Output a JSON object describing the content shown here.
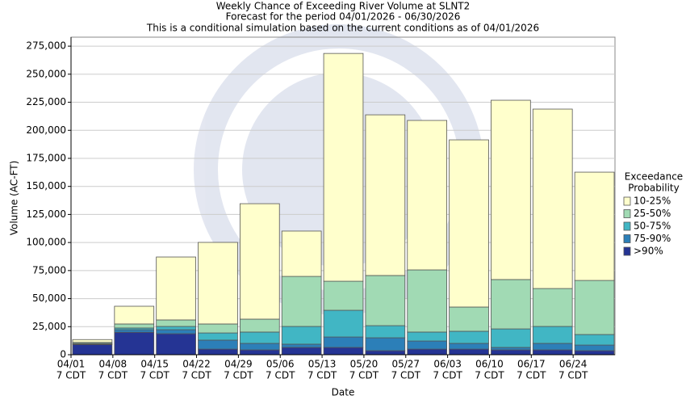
{
  "chart_data": {
    "type": "stacked_bar",
    "title": "Weekly Chance of Exceeding River Volume at SLNT2",
    "subtitle": "Forecast for the period 04/01/2026 - 06/30/2026",
    "note": "This is a conditional simulation based on the current conditions as of 04/01/2026",
    "x_label": "Date",
    "y_label": "Volume (AC-FT)",
    "categories": [
      "04/01",
      "04/08",
      "04/15",
      "04/22",
      "04/29",
      "05/06",
      "05/13",
      "05/20",
      "05/27",
      "06/03",
      "06/10",
      "06/17",
      "06/24"
    ],
    "category_sublabel": "7 CDT",
    "legend_title": [
      "Exceedance",
      "Probability"
    ],
    "series": [
      {
        "name": "10-25%",
        "color": "#ffffcc",
        "values": [
          2500,
          15800,
          56100,
          72700,
          102900,
          40400,
          203000,
          143200,
          133200,
          149000,
          159800,
          159900,
          96500
        ]
      },
      {
        "name": "25-50%",
        "color": "#a1dab4",
        "values": [
          1000,
          3600,
          5800,
          8000,
          11500,
          44600,
          25900,
          44700,
          55400,
          21600,
          44000,
          33800,
          48200
        ]
      },
      {
        "name": "50-75%",
        "color": "#41b6c4",
        "values": [
          500,
          1500,
          2900,
          6400,
          10100,
          15800,
          23800,
          10800,
          8000,
          10800,
          16500,
          15100,
          9400
        ]
      },
      {
        "name": "75-90%",
        "color": "#2c7fb8",
        "values": [
          500,
          2300,
          3600,
          8000,
          5800,
          2900,
          9300,
          11500,
          7200,
          5100,
          2200,
          5800,
          5000
        ]
      },
      {
        "name": ">90%",
        "color": "#253494",
        "values": [
          9000,
          20000,
          18700,
          5000,
          4300,
          6500,
          6500,
          3600,
          5000,
          5000,
          4300,
          4300,
          3600
        ]
      }
    ],
    "ylim": [
      0,
      283000
    ],
    "yticks": [
      0,
      {
        "value": 25000,
        "label": "25,000"
      },
      {
        "value": 50000,
        "label": "50,000"
      },
      {
        "value": 75000,
        "label": "75,000"
      },
      {
        "value": 100000,
        "label": "100,000"
      },
      {
        "value": 125000,
        "label": "125,000"
      },
      {
        "value": 150000,
        "label": "150,000"
      },
      {
        "value": 175000,
        "label": "175,000"
      },
      {
        "value": 200000,
        "label": "200,000"
      },
      {
        "value": 225000,
        "label": "225,000"
      },
      {
        "value": 250000,
        "label": "250,000"
      },
      {
        "value": 275000,
        "label": "275,000"
      }
    ],
    "grid": true
  }
}
